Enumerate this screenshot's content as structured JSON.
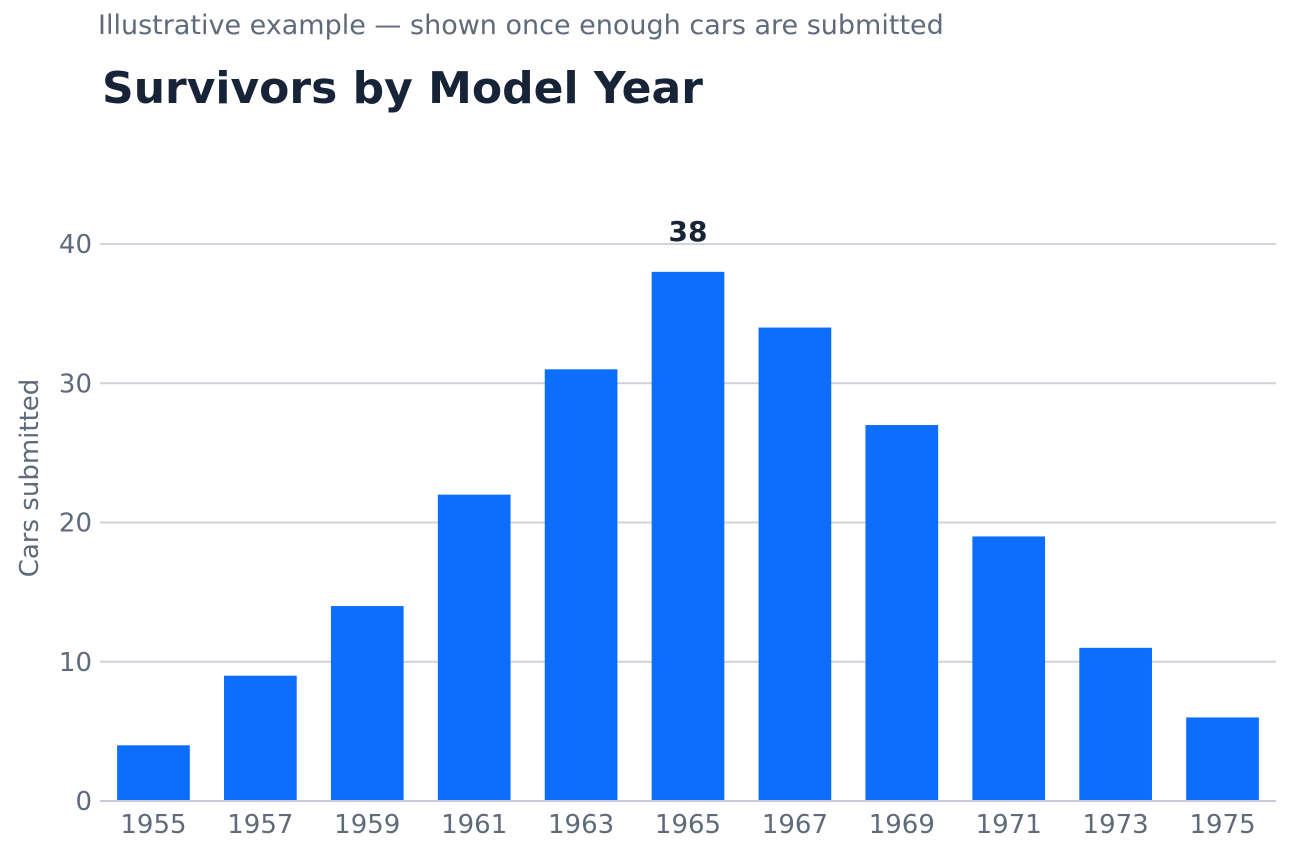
{
  "subtitle": "Illustrative example — shown once enough cars are submitted",
  "title": "Survivors by Model Year",
  "chart_data": {
    "type": "bar",
    "title": "Survivors by Model Year",
    "subtitle": "Illustrative example — shown once enough cars are submitted",
    "xlabel": "",
    "ylabel": "Cars submitted",
    "categories": [
      "1955",
      "1957",
      "1959",
      "1961",
      "1963",
      "1965",
      "1967",
      "1969",
      "1971",
      "1973",
      "1975"
    ],
    "values": [
      4,
      9,
      14,
      22,
      31,
      38,
      34,
      27,
      19,
      11,
      6
    ],
    "ylim": [
      0,
      40
    ],
    "yticks": [
      0,
      10,
      20,
      30,
      40
    ],
    "grid": true,
    "highlight_label": {
      "category": "1965",
      "text": "38"
    },
    "colors": {
      "bar": "#0d6efd",
      "grid": "#d0d4da",
      "axis": "#c9ccd6",
      "tick_text": "#5f6b7a",
      "title_text": "#172337"
    }
  }
}
